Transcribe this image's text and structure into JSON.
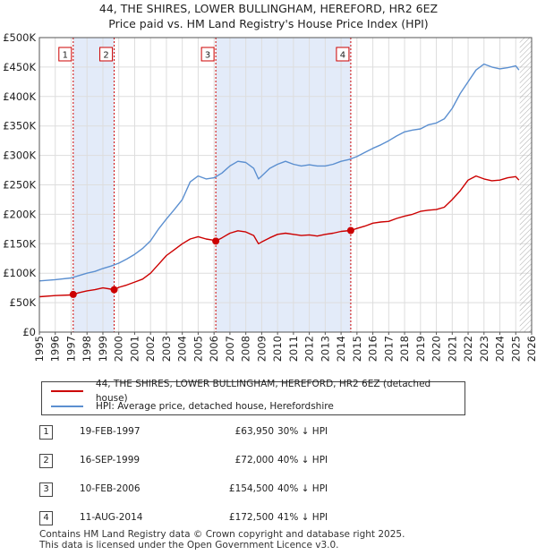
{
  "title_line1": "44, THE SHIRES, LOWER BULLINGHAM, HEREFORD, HR2 6EZ",
  "title_line2": "Price paid vs. HM Land Registry's House Price Index (HPI)",
  "colors": {
    "property": "#cc0000",
    "hpi": "#5b8fd0",
    "shade": "#e3ebf9",
    "grid": "#dddddd"
  },
  "legend": {
    "property_label": "44, THE SHIRES, LOWER BULLINGHAM, HEREFORD, HR2 6EZ (detached house)",
    "hpi_label": "HPI: Average price, detached house, Herefordshire"
  },
  "sales": [
    {
      "num": "1",
      "date": "19-FEB-1997",
      "price": "£63,950",
      "hpi": "30% ↓ HPI"
    },
    {
      "num": "2",
      "date": "16-SEP-1999",
      "price": "£72,000",
      "hpi": "40% ↓ HPI"
    },
    {
      "num": "3",
      "date": "10-FEB-2006",
      "price": "£154,500",
      "hpi": "40% ↓ HPI"
    },
    {
      "num": "4",
      "date": "11-AUG-2014",
      "price": "£172,500",
      "hpi": "41% ↓ HPI"
    }
  ],
  "footer_line1": "Contains HM Land Registry data © Crown copyright and database right 2025.",
  "footer_line2": "This data is licensed under the Open Government Licence v3.0.",
  "chart_data": {
    "type": "line",
    "title": "44, THE SHIRES, LOWER BULLINGHAM, HEREFORD, HR2 6EZ",
    "subtitle": "Price paid vs. HM Land Registry's House Price Index (HPI)",
    "xlabel": "",
    "ylabel": "",
    "xlim": [
      1995,
      2026
    ],
    "ylim": [
      0,
      500000
    ],
    "x_ticks": [
      1995,
      1996,
      1997,
      1998,
      1999,
      2000,
      2001,
      2002,
      2003,
      2004,
      2005,
      2006,
      2007,
      2008,
      2009,
      2010,
      2011,
      2012,
      2013,
      2014,
      2015,
      2016,
      2017,
      2018,
      2019,
      2020,
      2021,
      2022,
      2023,
      2024,
      2025,
      2026
    ],
    "y_ticks": [
      0,
      50000,
      100000,
      150000,
      200000,
      250000,
      300000,
      350000,
      400000,
      450000,
      500000
    ],
    "y_tick_labels": [
      "£0",
      "£50K",
      "£100K",
      "£150K",
      "£200K",
      "£250K",
      "£300K",
      "£350K",
      "£400K",
      "£450K",
      "£500K"
    ],
    "grid": true,
    "shaded_ranges": [
      [
        1997.13,
        1999.71
      ],
      [
        2006.11,
        2014.61
      ]
    ],
    "future_hatch_from": 2025.25,
    "sale_markers": [
      {
        "label": "1",
        "x": 1997.13,
        "y": 63950
      },
      {
        "label": "2",
        "x": 1999.71,
        "y": 72000
      },
      {
        "label": "3",
        "x": 2006.11,
        "y": 154500
      },
      {
        "label": "4",
        "x": 2014.61,
        "y": 172500
      }
    ],
    "series": [
      {
        "name": "44, THE SHIRES, LOWER BULLINGHAM, HEREFORD, HR2 6EZ (detached house)",
        "x": [
          1995.0,
          1996.0,
          1997.0,
          1997.13,
          1997.5,
          1998.0,
          1998.5,
          1999.0,
          1999.5,
          1999.71,
          2000.0,
          2000.5,
          2001.0,
          2001.5,
          2002.0,
          2002.5,
          2003.0,
          2003.5,
          2004.0,
          2004.5,
          2005.0,
          2005.5,
          2006.0,
          2006.11,
          2006.5,
          2007.0,
          2007.5,
          2008.0,
          2008.5,
          2008.8,
          2009.0,
          2009.5,
          2010.0,
          2010.5,
          2011.0,
          2011.5,
          2012.0,
          2012.5,
          2013.0,
          2013.5,
          2014.0,
          2014.61,
          2015.0,
          2015.5,
          2016.0,
          2016.5,
          2017.0,
          2017.5,
          2018.0,
          2018.5,
          2019.0,
          2019.5,
          2020.0,
          2020.5,
          2021.0,
          2021.5,
          2022.0,
          2022.5,
          2023.0,
          2023.5,
          2024.0,
          2024.5,
          2025.0,
          2025.2
        ],
        "y": [
          60000,
          62000,
          63000,
          63950,
          67000,
          70000,
          72000,
          75000,
          73000,
          72000,
          76000,
          80000,
          85000,
          90000,
          100000,
          115000,
          130000,
          140000,
          150000,
          158000,
          162000,
          158000,
          156000,
          154500,
          160000,
          168000,
          172000,
          170000,
          164000,
          150000,
          153000,
          160000,
          166000,
          168000,
          166000,
          164000,
          165000,
          163000,
          166000,
          168000,
          171000,
          172500,
          176000,
          180000,
          185000,
          187000,
          188000,
          193000,
          197000,
          200000,
          205000,
          207000,
          208000,
          212000,
          225000,
          240000,
          258000,
          265000,
          260000,
          257000,
          258000,
          262000,
          264000,
          258000
        ]
      },
      {
        "name": "HPI: Average price, detached house, Herefordshire",
        "x": [
          1995.0,
          1996.0,
          1997.0,
          1997.5,
          1998.0,
          1998.5,
          1999.0,
          1999.5,
          2000.0,
          2000.5,
          2001.0,
          2001.5,
          2002.0,
          2002.5,
          2003.0,
          2003.5,
          2004.0,
          2004.5,
          2005.0,
          2005.5,
          2006.0,
          2006.5,
          2007.0,
          2007.5,
          2008.0,
          2008.5,
          2008.8,
          2009.0,
          2009.5,
          2010.0,
          2010.5,
          2011.0,
          2011.5,
          2012.0,
          2012.5,
          2013.0,
          2013.5,
          2014.0,
          2014.5,
          2015.0,
          2015.5,
          2016.0,
          2016.5,
          2017.0,
          2017.5,
          2018.0,
          2018.5,
          2019.0,
          2019.5,
          2020.0,
          2020.5,
          2021.0,
          2021.5,
          2022.0,
          2022.5,
          2023.0,
          2023.5,
          2024.0,
          2024.5,
          2025.0,
          2025.2
        ],
        "y": [
          87000,
          89000,
          92000,
          96000,
          100000,
          103000,
          108000,
          112000,
          117000,
          124000,
          132000,
          142000,
          155000,
          175000,
          192000,
          208000,
          225000,
          255000,
          265000,
          260000,
          262000,
          270000,
          282000,
          290000,
          288000,
          278000,
          260000,
          265000,
          278000,
          285000,
          290000,
          285000,
          282000,
          284000,
          282000,
          282000,
          285000,
          290000,
          293000,
          298000,
          305000,
          312000,
          318000,
          325000,
          333000,
          340000,
          343000,
          345000,
          352000,
          355000,
          362000,
          380000,
          405000,
          425000,
          445000,
          455000,
          450000,
          447000,
          449000,
          452000,
          445000
        ]
      }
    ]
  }
}
